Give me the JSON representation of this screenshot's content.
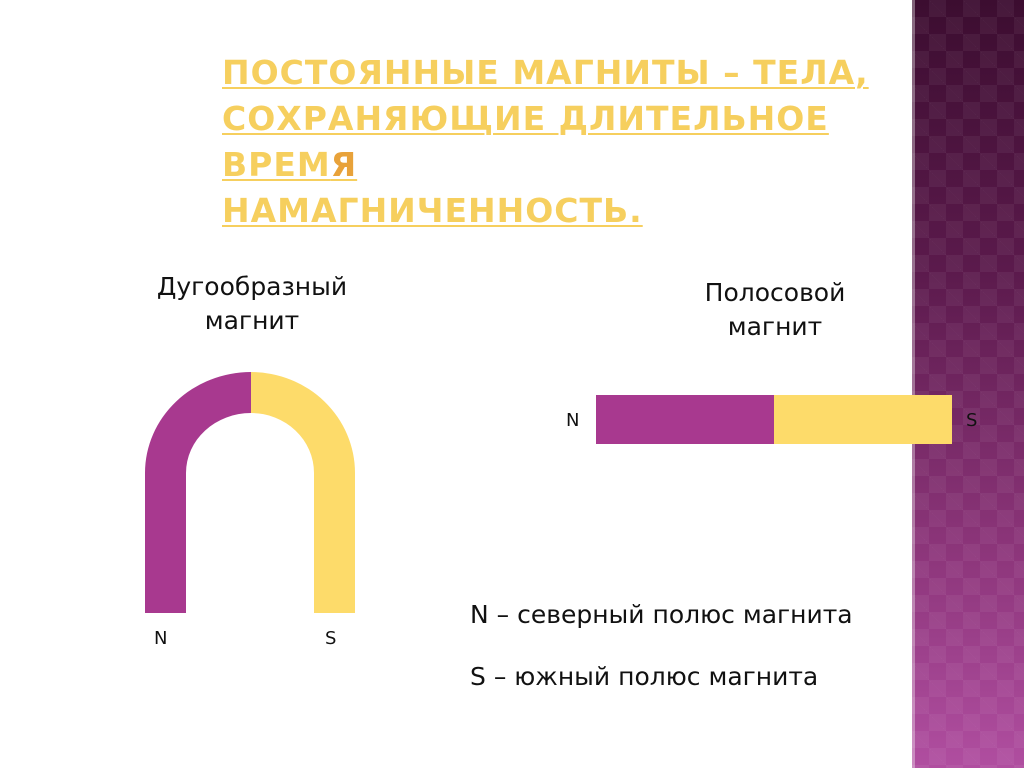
{
  "title": {
    "lines": [
      "ПОСТОЯННЫЕ МАГНИТЫ – ТЕЛА,",
      "СОХРАНЯЮЩИЕ ДЛИТЕЛЬНОЕ ВРЕМ",
      "НАМАГНИЧЕННОСТЬ."
    ],
    "line2_last_letter": "Я"
  },
  "horseshoe": {
    "label_lines": [
      "Дугообразный",
      "магнит"
    ],
    "north_label": "N",
    "south_label": "S"
  },
  "bar": {
    "label_lines": [
      "Полосовой",
      "магнит"
    ],
    "north_label": "N",
    "south_label": "S"
  },
  "legend": {
    "north": "N – северный полюс магнита",
    "south": "S – южный полюс магнита"
  },
  "colors": {
    "north_pole": "#a8398f",
    "south_pole": "#fddb6a",
    "title": "#f6cf5e",
    "side_band": "#5b1a4c"
  }
}
